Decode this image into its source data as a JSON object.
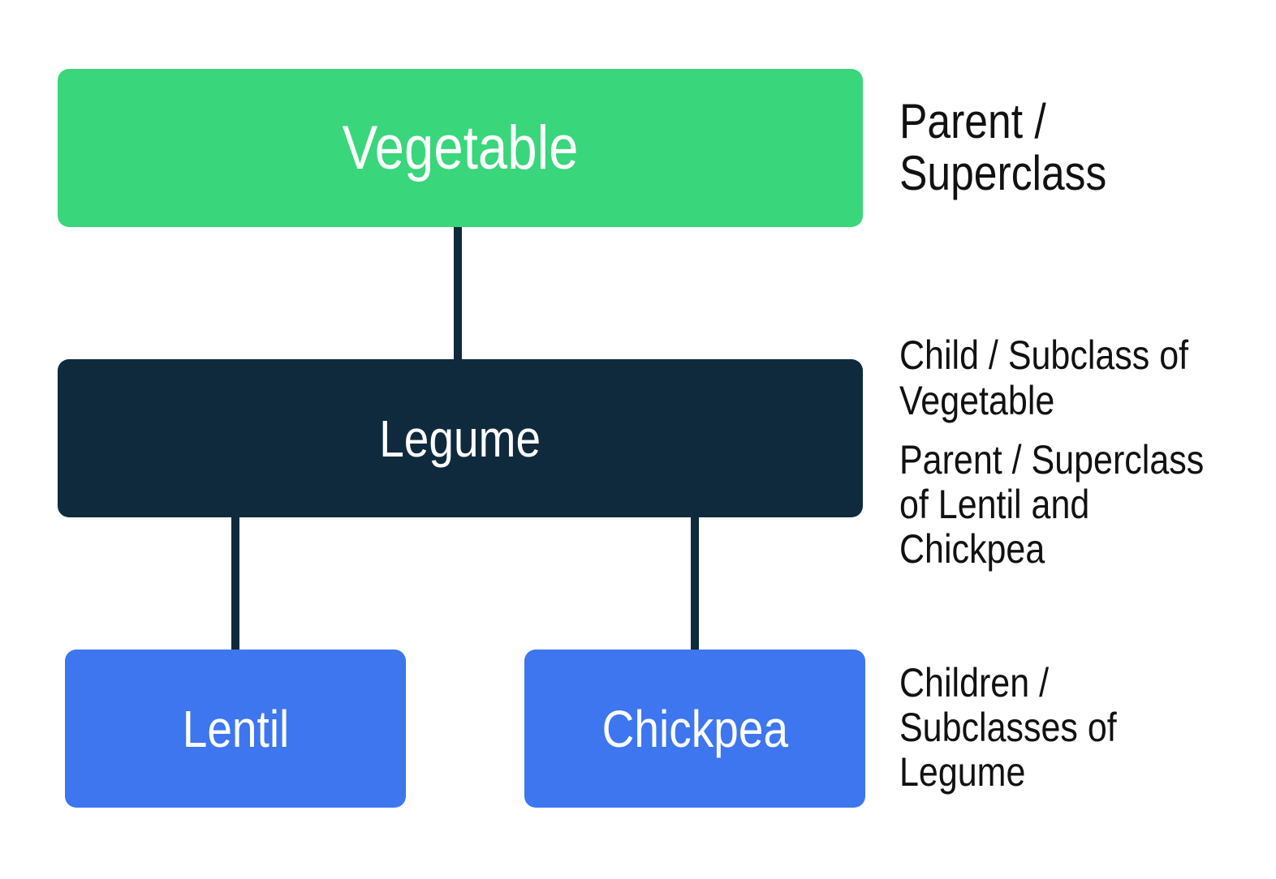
{
  "nodes": {
    "vegetable": "Vegetable",
    "legume": "Legume",
    "lentil": "Lentil",
    "chickpea": "Chickpea"
  },
  "annotations": {
    "vegetable": [
      "Parent /",
      "Superclass"
    ],
    "legume_child": [
      "Child / Subclass of",
      "Vegetable"
    ],
    "legume_parent": [
      "Parent / Superclass",
      "of Lentil and",
      "Chickpea"
    ],
    "children": [
      "Children /",
      "Subclasses of",
      "Legume"
    ]
  },
  "colors": {
    "vegetable": "#39d67b",
    "legume": "#102a3d",
    "children": "#3d76ef",
    "connector": "#102a3d"
  },
  "connections": [
    [
      "Vegetable",
      "Legume"
    ],
    [
      "Legume",
      "Lentil"
    ],
    [
      "Legume",
      "Chickpea"
    ]
  ]
}
